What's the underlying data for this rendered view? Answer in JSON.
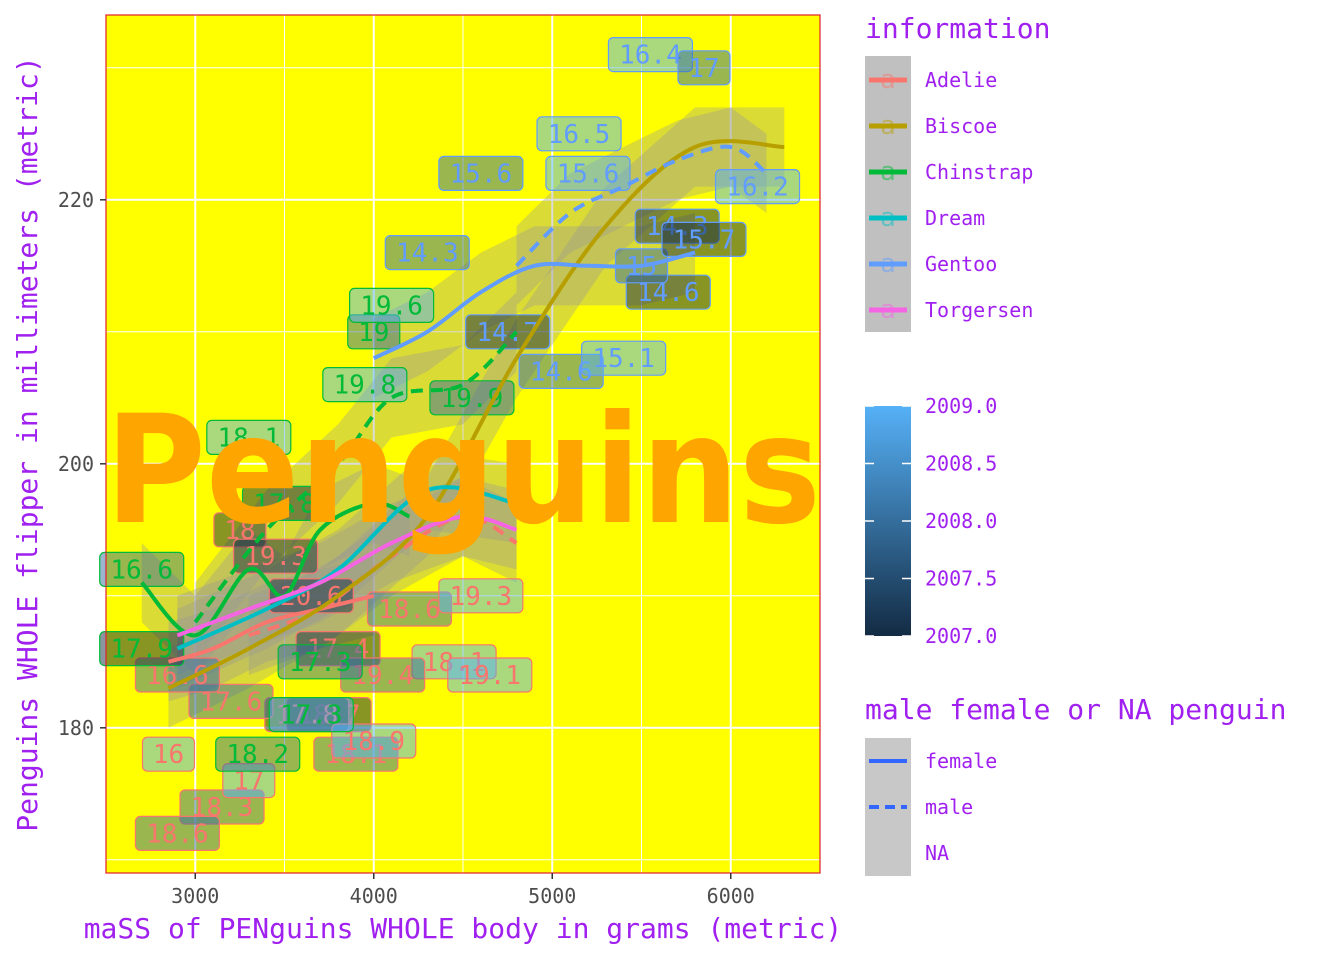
{
  "chart_data": {
    "type": "scatter",
    "title": "Penguins",
    "xlabel": "maSS of PENguins WHOLE body in grams (metric)",
    "ylabel": "Penguins WHOLE flipper in millimeters (metric)",
    "xlim": [
      2500,
      6500
    ],
    "ylim": [
      169,
      234
    ],
    "x_ticks": [
      3000,
      4000,
      5000,
      6000
    ],
    "y_ticks": [
      180,
      200,
      220
    ],
    "grid": true,
    "panel_background": "#ffff00",
    "legend_position": "right",
    "colors": {
      "Adelie": "#f8766d",
      "Biscoe": "#b79f00",
      "Chinstrap": "#00ba38",
      "Dream": "#00bfc4",
      "Gentoo": "#619cff",
      "Torgersen": "#f564e3"
    },
    "legend_information": {
      "title": "information",
      "entries": [
        "Adelie",
        "Biscoe",
        "Chinstrap",
        "Dream",
        "Gentoo",
        "Torgersen"
      ]
    },
    "legend_year": {
      "title": "",
      "min": 2007.0,
      "max": 2009.0,
      "labels": [
        "2009.0",
        "2008.5",
        "2008.0",
        "2007.5",
        "2007.0"
      ],
      "low_color": "#132b43",
      "high_color": "#56b1f7"
    },
    "legend_sex": {
      "title": "male female or NA penguin",
      "entries": [
        "female",
        "male",
        "NA"
      ],
      "line_color": "#3366ff"
    },
    "points": [
      {
        "x": 3750,
        "y": 181,
        "label": "18.7",
        "species": "Adelie",
        "year": 2007
      },
      {
        "x": 3800,
        "y": 186,
        "label": "17.4",
        "species": "Adelie",
        "year": 2007
      },
      {
        "x": 3250,
        "y": 195,
        "label": "18",
        "species": "Adelie",
        "year": 2007
      },
      {
        "x": 3450,
        "y": 193,
        "label": "19.3",
        "species": "Adelie",
        "year": 2007
      },
      {
        "x": 3650,
        "y": 190,
        "label": "20.6",
        "species": "Adelie",
        "year": 2007
      },
      {
        "x": 3625,
        "y": 181,
        "label": "17.8",
        "species": "Adelie",
        "year": 2007
      },
      {
        "x": 3200,
        "y": 182,
        "label": "17.6",
        "species": "Adelie",
        "year": 2008
      },
      {
        "x": 2900,
        "y": 184,
        "label": "16.6",
        "species": "Adelie",
        "year": 2008
      },
      {
        "x": 3150,
        "y": 174,
        "label": "18.3",
        "species": "Adelie",
        "year": 2008
      },
      {
        "x": 2900,
        "y": 172,
        "label": "18.6",
        "species": "Adelie",
        "year": 2008
      },
      {
        "x": 3300,
        "y": 176,
        "label": "17",
        "species": "Adelie",
        "year": 2009
      },
      {
        "x": 3900,
        "y": 178,
        "label": "18.1",
        "species": "Adelie",
        "year": 2008
      },
      {
        "x": 4450,
        "y": 185,
        "label": "18.1",
        "species": "Adelie",
        "year": 2009
      },
      {
        "x": 4650,
        "y": 184,
        "label": "19.1",
        "species": "Adelie",
        "year": 2009
      },
      {
        "x": 4200,
        "y": 189,
        "label": "18.6",
        "species": "Adelie",
        "year": 2008
      },
      {
        "x": 4600,
        "y": 190,
        "label": "19.3",
        "species": "Adelie",
        "year": 2009
      },
      {
        "x": 2850,
        "y": 178,
        "label": "16",
        "species": "Adelie",
        "year": 2009
      },
      {
        "x": 4000,
        "y": 179,
        "label": "18.9",
        "species": "Adelie",
        "year": 2009
      },
      {
        "x": 4050,
        "y": 184,
        "label": "19.4",
        "species": "Adelie",
        "year": 2008
      },
      {
        "x": 2700,
        "y": 186,
        "label": "17.9",
        "species": "Chinstrap",
        "year": 2007
      },
      {
        "x": 2700,
        "y": 192,
        "label": "16.6",
        "species": "Chinstrap",
        "year": 2008
      },
      {
        "x": 3350,
        "y": 178,
        "label": "18.2",
        "species": "Chinstrap",
        "year": 2008
      },
      {
        "x": 3650,
        "y": 181,
        "label": "17.3",
        "species": "Chinstrap",
        "year": 2009
      },
      {
        "x": 3700,
        "y": 185,
        "label": "17.3",
        "species": "Chinstrap",
        "year": 2008
      },
      {
        "x": 4000,
        "y": 210,
        "label": "19",
        "species": "Chinstrap",
        "year": 2008
      },
      {
        "x": 4100,
        "y": 212,
        "label": "19.6",
        "species": "Chinstrap",
        "year": 2009
      },
      {
        "x": 3950,
        "y": 206,
        "label": "19.8",
        "species": "Chinstrap",
        "year": 2009
      },
      {
        "x": 3300,
        "y": 202,
        "label": "18.1",
        "species": "Chinstrap",
        "year": 2009
      },
      {
        "x": 4550,
        "y": 205,
        "label": "19.9",
        "species": "Chinstrap",
        "year": 2008
      },
      {
        "x": 3500,
        "y": 197,
        "label": "17.8",
        "species": "Chinstrap",
        "year": 2007
      },
      {
        "x": 4300,
        "y": 216,
        "label": "14.3",
        "species": "Gentoo",
        "year": 2008
      },
      {
        "x": 4750,
        "y": 210,
        "label": "14.7",
        "species": "Gentoo",
        "year": 2007
      },
      {
        "x": 5050,
        "y": 207,
        "label": "14.6",
        "species": "Gentoo",
        "year": 2008
      },
      {
        "x": 5400,
        "y": 208,
        "label": "15.1",
        "species": "Gentoo",
        "year": 2009
      },
      {
        "x": 5650,
        "y": 213,
        "label": "14.6",
        "species": "Gentoo",
        "year": 2007
      },
      {
        "x": 5500,
        "y": 215,
        "label": "15",
        "species": "Gentoo",
        "year": 2008
      },
      {
        "x": 5700,
        "y": 218,
        "label": "14.3",
        "species": "Gentoo",
        "year": 2007
      },
      {
        "x": 6150,
        "y": 221,
        "label": "16.2",
        "species": "Gentoo",
        "year": 2009
      },
      {
        "x": 5150,
        "y": 225,
        "label": "16.5",
        "species": "Gentoo",
        "year": 2009
      },
      {
        "x": 5550,
        "y": 231,
        "label": "16.4",
        "species": "Gentoo",
        "year": 2009
      },
      {
        "x": 5850,
        "y": 230,
        "label": "17",
        "species": "Gentoo",
        "year": 2008
      },
      {
        "x": 4600,
        "y": 222,
        "label": "15.6",
        "species": "Gentoo",
        "year": 2008
      },
      {
        "x": 5200,
        "y": 222,
        "label": "15.6",
        "species": "Gentoo",
        "year": 2009
      },
      {
        "x": 5850,
        "y": 217,
        "label": "15.7",
        "species": "Gentoo",
        "year": 2007
      }
    ],
    "smooth_lines": [
      {
        "species": "Adelie",
        "sex": "female",
        "x": [
          2850,
          3100,
          3400,
          3700,
          4000
        ],
        "y": [
          185,
          186,
          188,
          189,
          190
        ]
      },
      {
        "species": "Adelie",
        "sex": "male",
        "x": [
          3300,
          3700,
          4100,
          4500,
          4800
        ],
        "y": [
          187,
          189,
          193,
          196,
          194
        ]
      },
      {
        "species": "Biscoe",
        "sex": "female",
        "x": [
          2850,
          3300,
          3800,
          4300,
          4800,
          5300,
          5800,
          6300
        ],
        "y": [
          183,
          186,
          190,
          196,
          208,
          218,
          224,
          224
        ]
      },
      {
        "species": "Chinstrap",
        "sex": "female",
        "x": [
          2700,
          3000,
          3300,
          3500,
          3700,
          4000,
          4200
        ],
        "y": [
          191,
          187,
          192,
          190,
          195,
          197,
          196
        ]
      },
      {
        "species": "Chinstrap",
        "sex": "male",
        "x": [
          3000,
          3400,
          3800,
          4100,
          4500,
          4800
        ],
        "y": [
          188,
          195,
          200,
          205,
          206,
          210
        ]
      },
      {
        "species": "Dream",
        "sex": "female",
        "x": [
          2900,
          3400,
          3800,
          4300,
          4800
        ],
        "y": [
          186,
          189,
          192,
          198,
          197
        ]
      },
      {
        "species": "Gentoo",
        "sex": "female",
        "x": [
          4000,
          4300,
          4600,
          4900,
          5200,
          5500,
          5800
        ],
        "y": [
          208,
          210,
          213,
          215,
          215,
          215,
          216
        ]
      },
      {
        "species": "Gentoo",
        "sex": "male",
        "x": [
          4800,
          5100,
          5400,
          5700,
          6000,
          6200
        ],
        "y": [
          215,
          219,
          221,
          223,
          224,
          222
        ]
      },
      {
        "species": "Torgersen",
        "sex": "female",
        "x": [
          2900,
          3300,
          3700,
          4100,
          4500,
          4800
        ],
        "y": [
          187,
          189,
          191,
          194,
          196,
          195
        ]
      }
    ]
  }
}
